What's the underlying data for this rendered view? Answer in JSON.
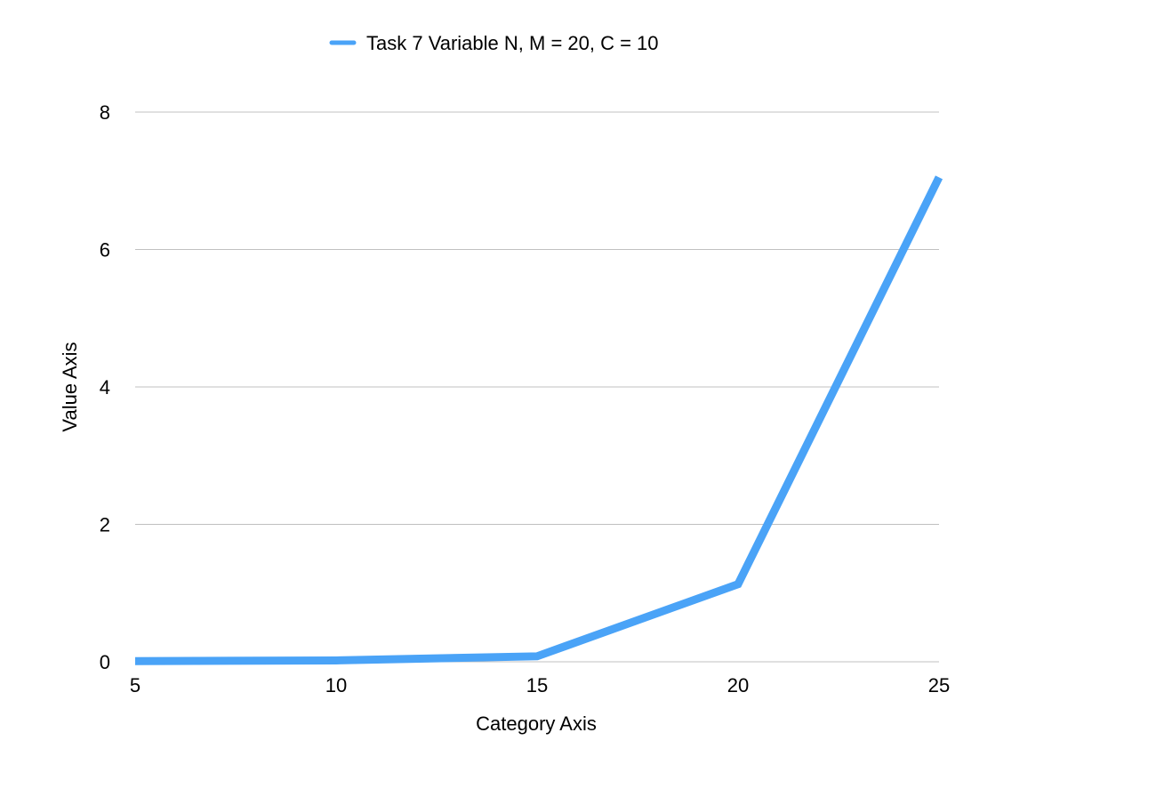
{
  "chart_data": {
    "type": "line",
    "title": "",
    "xlabel": "Category Axis",
    "ylabel": "Value Axis",
    "categories": [
      "5",
      "10",
      "15",
      "20",
      "25"
    ],
    "x": [
      5,
      10,
      15,
      20,
      25
    ],
    "xlim": [
      5,
      25
    ],
    "ylim": [
      0,
      8
    ],
    "yticks": [
      0,
      2,
      4,
      6,
      8
    ],
    "yticklabels": [
      "0",
      "2",
      "4",
      "6",
      "8"
    ],
    "grid": true,
    "legend_position": "top",
    "series": [
      {
        "name": "Task 7 Variable N, M = 20, C = 10",
        "color": "#4aa3f7",
        "values": [
          0.01,
          0.02,
          0.08,
          1.13,
          7.05
        ]
      }
    ]
  }
}
